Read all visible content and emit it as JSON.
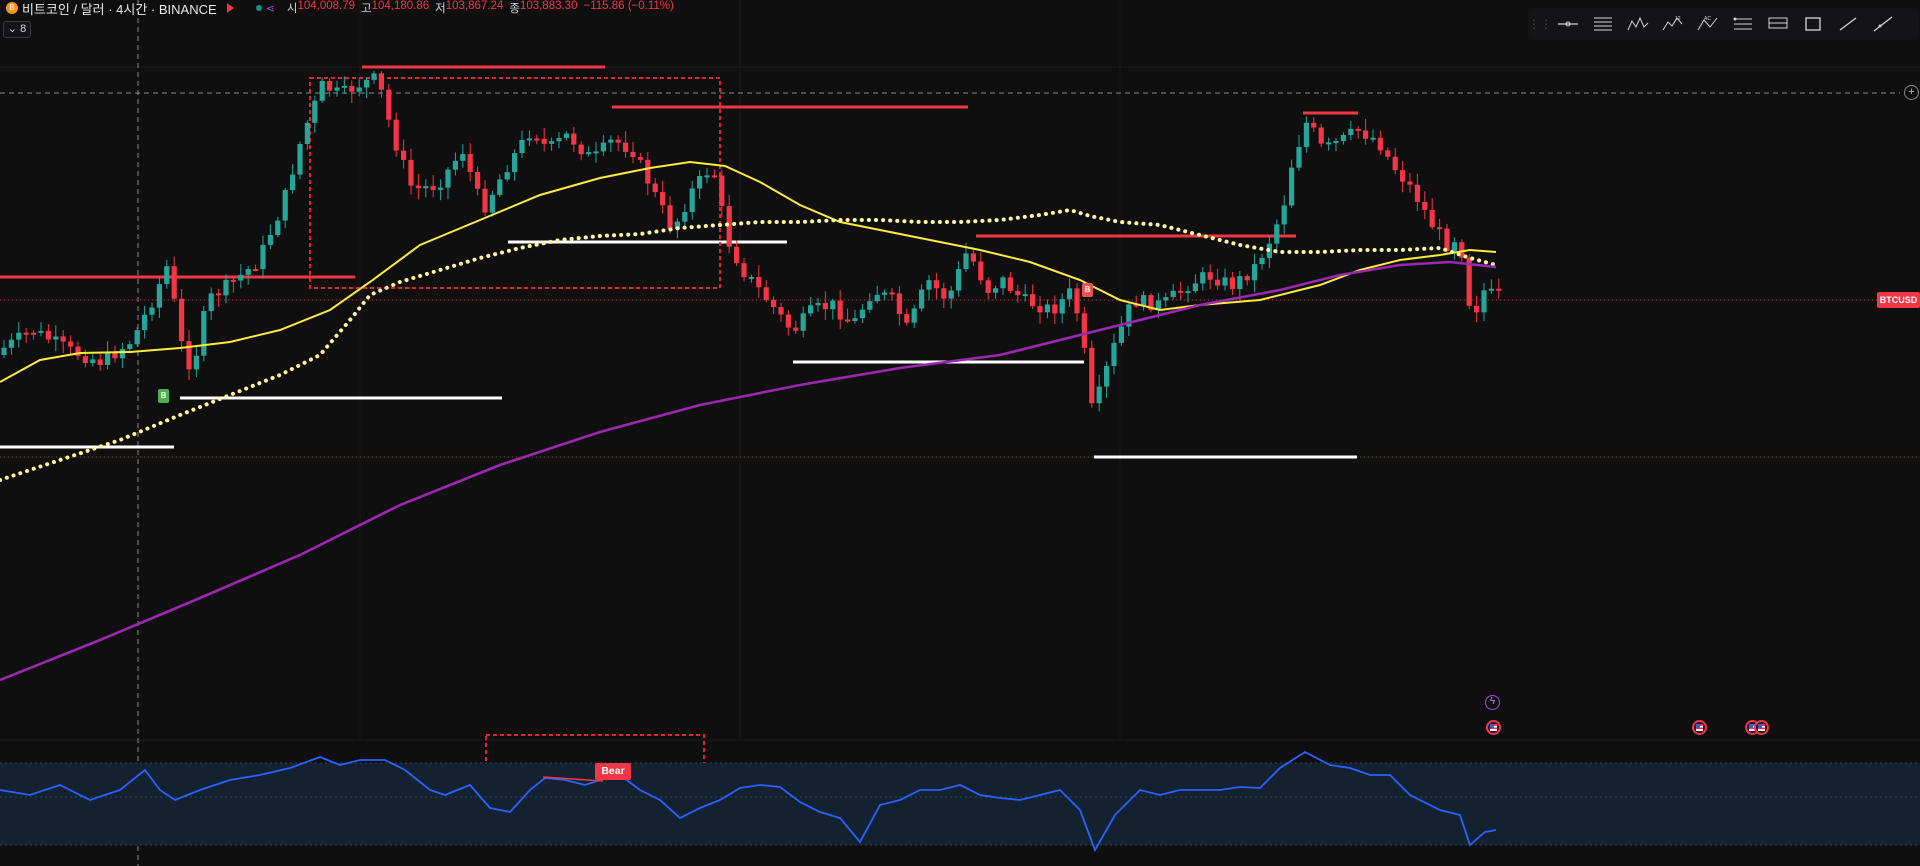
{
  "header": {
    "coin_glyph": "B",
    "symbol_title": "비트코인 / 달러 · 4시간 · BINANCE",
    "ohlc": [
      {
        "key": "시",
        "value": "104,008.79"
      },
      {
        "key": "고",
        "value": "104,180.86"
      },
      {
        "key": "저",
        "value": "103,867.24"
      },
      {
        "key": "종",
        "value": "103,883.30"
      }
    ],
    "change": "−115.86 (−0.11%)",
    "collapse_count": "8"
  },
  "toolbar": {
    "icons": [
      "horizontal-line-icon",
      "horizontal-ray-icon",
      "parallel-lines-icon",
      "pattern-icon",
      "abcd-pattern-icon",
      "elliott-wave-icon",
      "fib-retracement-icon",
      "fib-extension-icon",
      "rectangle-icon",
      "trend-line-icon",
      "extended-line-icon"
    ]
  },
  "price_tag": "BTCUSD",
  "markers": {
    "buy_label": "B",
    "bear_label": "Bear"
  },
  "colors": {
    "up": "#26a69a",
    "down": "#f23645",
    "ema_fast": "#ffeb3b",
    "ema_dotted": "#fff59d",
    "ema_slow": "#9c27b0",
    "rsi": "#2962ff",
    "support": "#ffffff",
    "resistance": "#f23645",
    "background": "#0f0f10"
  },
  "chart_data": {
    "type": "candlestick",
    "symbol": "BTCUSD",
    "timeframe": "4시간",
    "exchange": "BINANCE",
    "last_close": 103883.3,
    "overlays": [
      "EMA (yellow)",
      "EMA (yellow dotted)",
      "EMA (purple)",
      "horizontal support/resistance lines"
    ],
    "sub_pane": {
      "type": "RSI-like oscillator",
      "annotation": "Bear"
    },
    "scale_note": "price axis not visible; y-values omitted"
  }
}
